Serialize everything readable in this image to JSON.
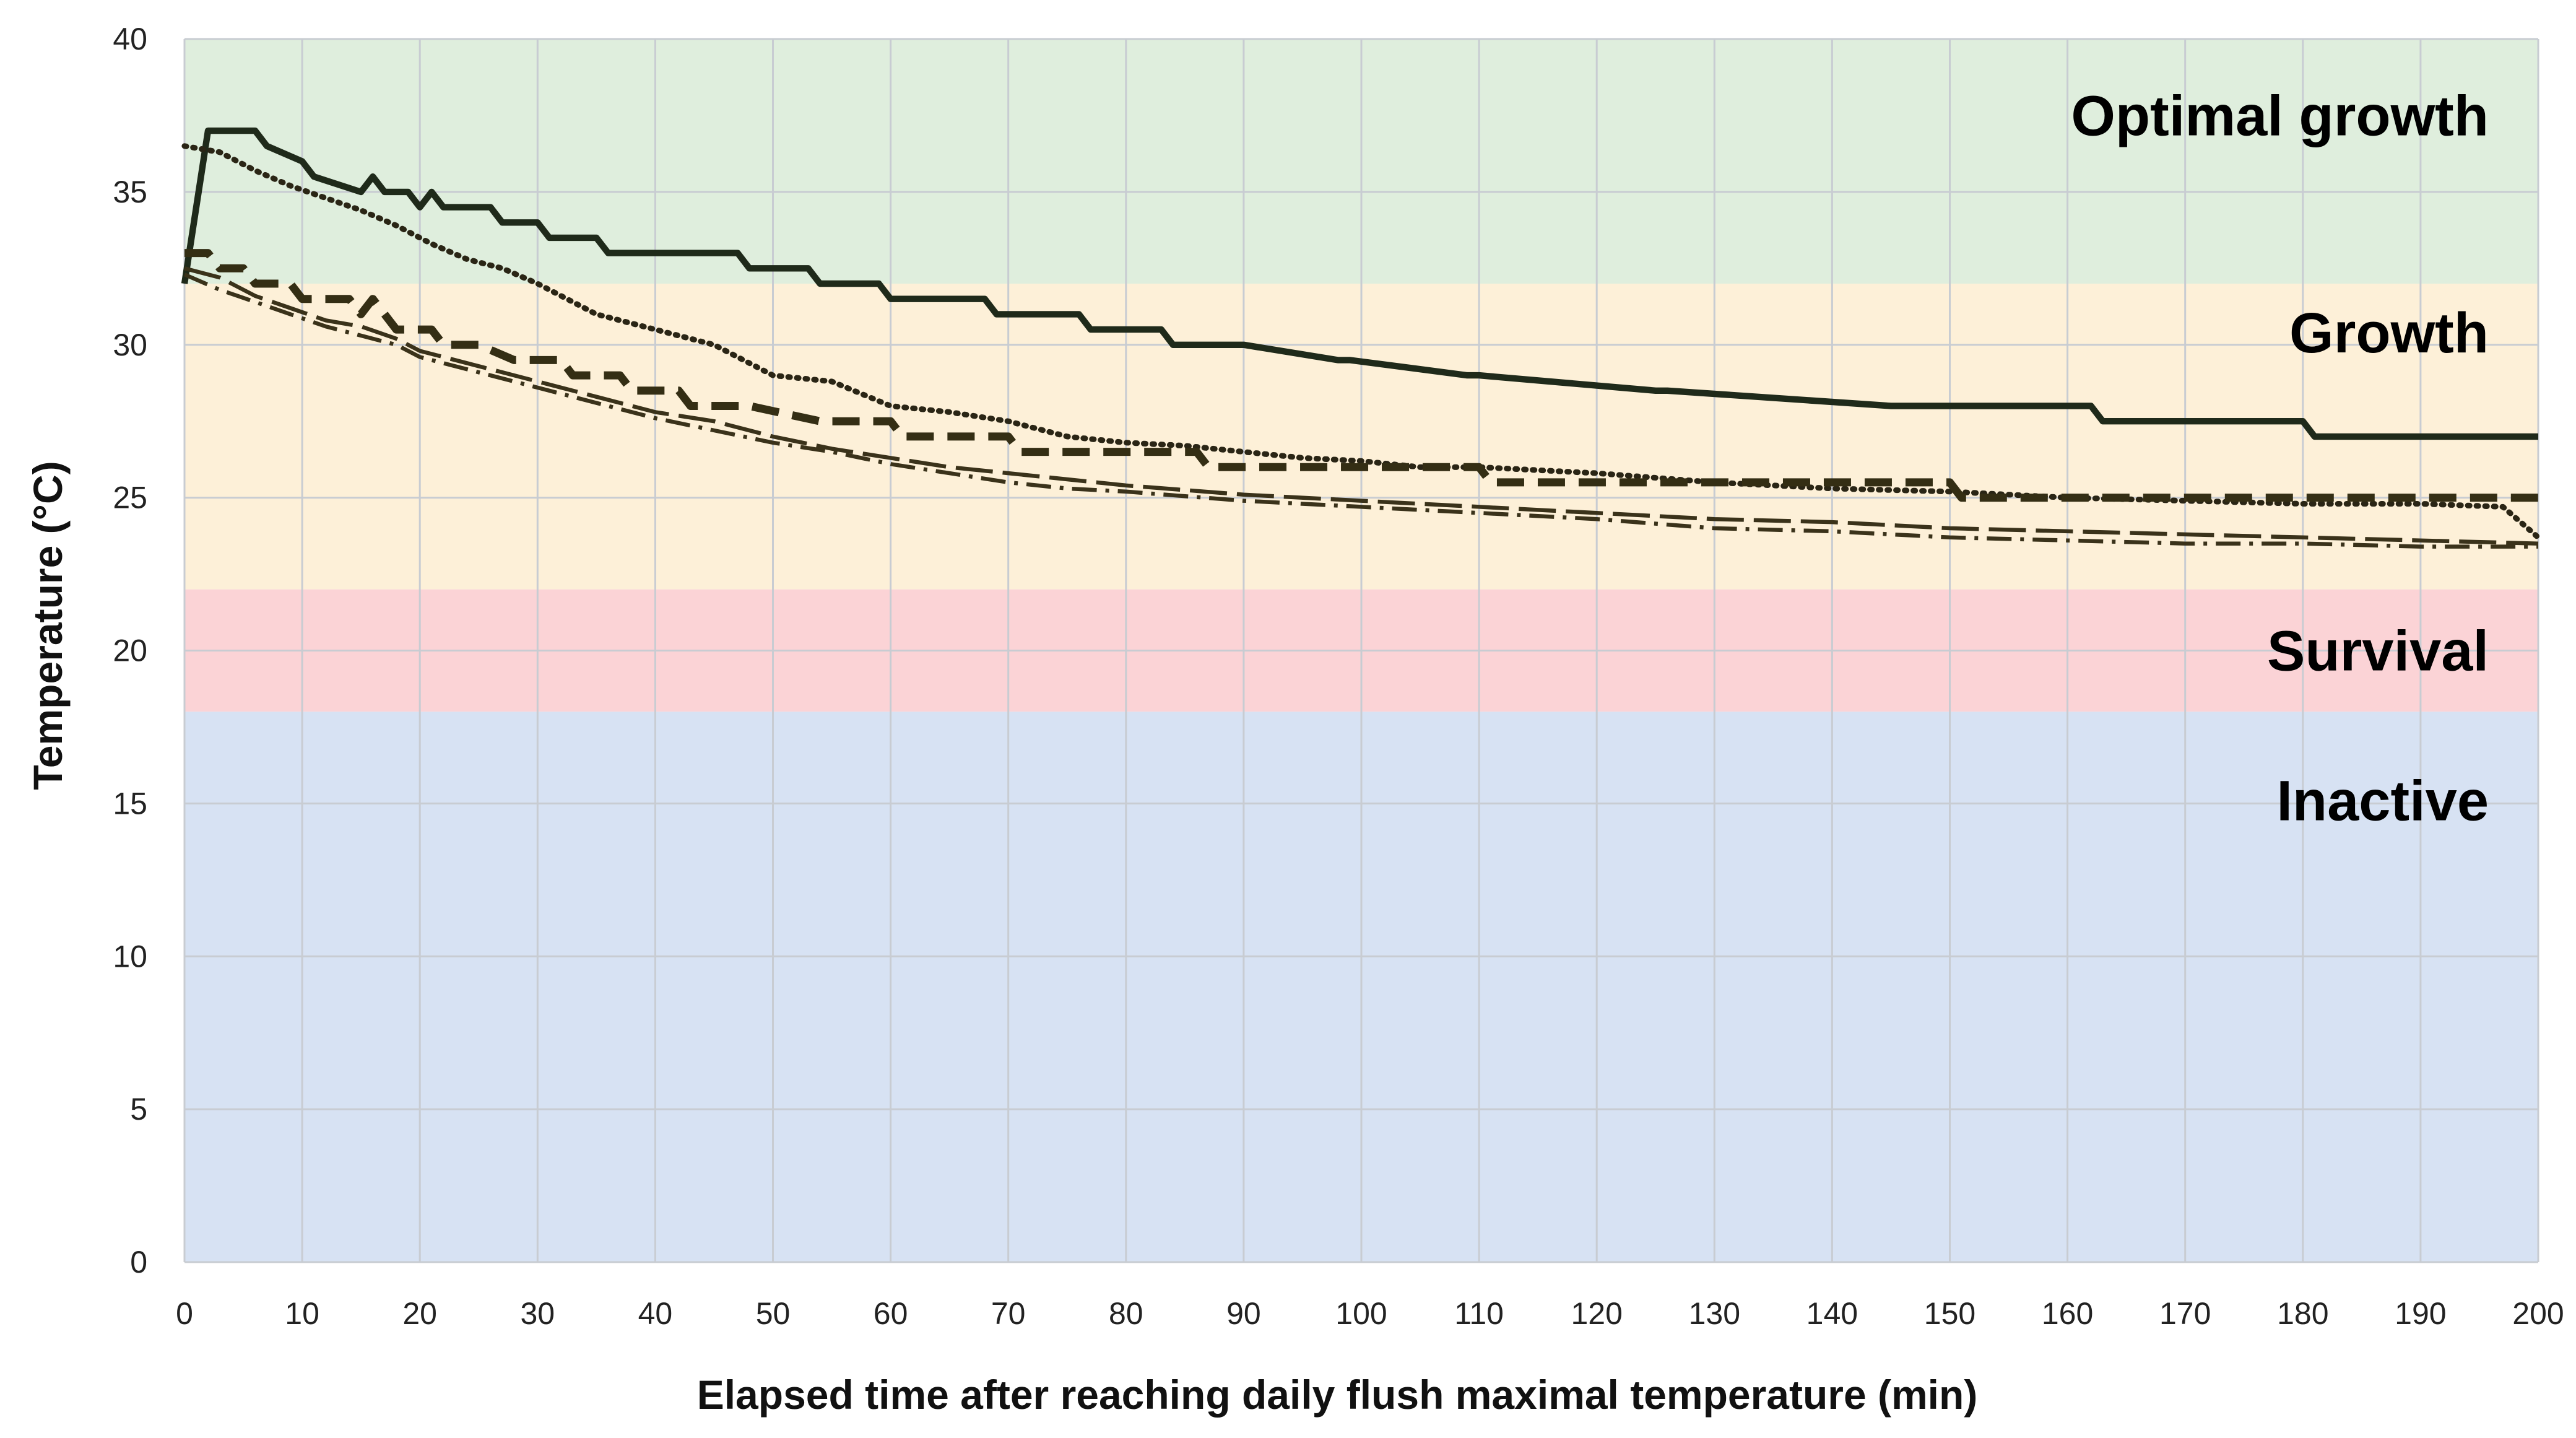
{
  "chart_data": {
    "type": "line",
    "title": "",
    "xlabel": "Elapsed time after reaching daily flush maximal temperature (min)",
    "ylabel": "Temperature (°C)",
    "xlim": [
      0,
      200
    ],
    "ylim": [
      0,
      40
    ],
    "xticks": [
      0,
      10,
      20,
      30,
      40,
      50,
      60,
      70,
      80,
      90,
      100,
      110,
      120,
      130,
      140,
      150,
      160,
      170,
      180,
      190,
      200
    ],
    "yticks": [
      0,
      5,
      10,
      15,
      20,
      25,
      30,
      35,
      40
    ],
    "grid": true,
    "legend": "none",
    "zones": [
      {
        "label": "Optimal growth",
        "y_from": 32,
        "y_to": 40,
        "color": "#dfeedd"
      },
      {
        "label": "Growth",
        "y_from": 22,
        "y_to": 32,
        "color": "#fdf0d8"
      },
      {
        "label": "Survival",
        "y_from": 18,
        "y_to": 22,
        "color": "#fbd3d6"
      },
      {
        "label": "Inactive",
        "y_from": 0,
        "y_to": 18,
        "color": "#d7e2f3"
      }
    ],
    "series": [
      {
        "name": "solid",
        "style": "solid",
        "color": "#1f2a1a",
        "width": 4,
        "x": [
          0,
          2,
          3,
          6,
          7,
          10,
          11,
          15,
          16,
          17,
          18,
          19,
          20,
          21,
          22,
          23,
          24,
          25,
          26,
          27,
          28,
          30,
          31,
          35,
          36,
          40,
          41,
          47,
          48,
          53,
          54,
          59,
          60,
          68,
          69,
          76,
          77,
          83,
          84,
          89,
          90,
          98,
          99,
          109,
          110,
          125,
          126,
          145,
          146,
          162,
          163,
          180,
          181,
          186,
          187,
          200
        ],
        "y": [
          32.0,
          37.0,
          37.0,
          37.0,
          36.5,
          36.0,
          35.5,
          35.0,
          35.5,
          35.0,
          35.0,
          35.0,
          34.5,
          35.0,
          34.5,
          34.5,
          34.5,
          34.5,
          34.5,
          34.0,
          34.0,
          34.0,
          33.5,
          33.5,
          33.0,
          33.0,
          33.0,
          33.0,
          32.5,
          32.5,
          32.0,
          32.0,
          31.5,
          31.5,
          31.0,
          31.0,
          30.5,
          30.5,
          30.0,
          30.0,
          30.0,
          29.5,
          29.5,
          29.0,
          29.0,
          28.5,
          28.5,
          28.0,
          28.0,
          28.0,
          27.5,
          27.5,
          27.0,
          27.0,
          27.0,
          27.0
        ]
      },
      {
        "name": "dotted",
        "style": "dotted",
        "color": "#2a2515",
        "width": 3.5,
        "x": [
          0,
          3,
          6,
          9,
          12,
          15,
          18,
          21,
          24,
          27,
          30,
          35,
          40,
          45,
          50,
          55,
          60,
          65,
          70,
          75,
          80,
          85,
          90,
          95,
          100,
          105,
          110,
          120,
          130,
          140,
          150,
          160,
          170,
          180,
          190,
          197,
          200
        ],
        "y": [
          36.5,
          36.3,
          35.7,
          35.2,
          34.8,
          34.4,
          33.9,
          33.3,
          32.8,
          32.5,
          32.0,
          31.0,
          30.5,
          30.0,
          29.0,
          28.8,
          28.0,
          27.8,
          27.5,
          27.0,
          26.8,
          26.7,
          26.5,
          26.3,
          26.2,
          26.0,
          26.0,
          25.8,
          25.5,
          25.3,
          25.2,
          25.0,
          24.9,
          24.8,
          24.8,
          24.7,
          23.7
        ]
      },
      {
        "name": "heavy-dash",
        "style": "dashed",
        "color": "#342e14",
        "width": 5,
        "x": [
          0,
          2,
          3,
          5,
          6,
          9,
          10,
          14,
          15,
          16,
          17,
          18,
          19,
          20,
          21,
          22,
          24,
          25,
          28,
          29,
          32,
          33,
          37,
          38,
          42,
          43,
          47,
          48,
          54,
          55,
          60,
          61,
          66,
          67,
          70,
          71,
          78,
          79,
          86,
          87,
          90,
          91,
          100,
          101,
          110,
          111,
          119,
          120,
          128,
          129,
          150,
          151,
          200
        ],
        "y": [
          33,
          33,
          32.5,
          32.5,
          32,
          32,
          31.5,
          31.5,
          31,
          31.5,
          31,
          30.5,
          30.5,
          30.5,
          30.5,
          30,
          30,
          30,
          29.5,
          29.5,
          29.5,
          29,
          29,
          28.5,
          28.5,
          28,
          28,
          28,
          27.5,
          27.5,
          27.5,
          27,
          27,
          27,
          27,
          26.5,
          26.5,
          26.5,
          26.5,
          26,
          26,
          26,
          26,
          26,
          26,
          25.5,
          25.5,
          25.5,
          25.5,
          25.5,
          25.5,
          25,
          25
        ]
      },
      {
        "name": "long-dash",
        "style": "long-dash",
        "color": "#3a321a",
        "width": 2.5,
        "x": [
          0,
          3,
          6,
          9,
          12,
          15,
          18,
          20,
          25,
          30,
          35,
          40,
          45,
          50,
          55,
          60,
          65,
          70,
          75,
          80,
          90,
          100,
          110,
          120,
          130,
          140,
          150,
          160,
          170,
          180,
          190,
          200
        ],
        "y": [
          32.5,
          32.2,
          31.6,
          31.2,
          30.8,
          30.6,
          30.2,
          29.8,
          29.3,
          28.8,
          28.3,
          27.8,
          27.5,
          27.0,
          26.6,
          26.3,
          26.0,
          25.8,
          25.6,
          25.4,
          25.1,
          24.9,
          24.7,
          24.5,
          24.3,
          24.2,
          24.0,
          23.9,
          23.8,
          23.7,
          23.6,
          23.5
        ]
      },
      {
        "name": "dash-dot",
        "style": "dash-dot",
        "color": "#3a321a",
        "width": 2.5,
        "x": [
          0,
          3,
          6,
          9,
          12,
          15,
          18,
          20,
          25,
          30,
          35,
          40,
          45,
          50,
          55,
          60,
          65,
          70,
          75,
          80,
          90,
          100,
          110,
          120,
          130,
          140,
          150,
          160,
          170,
          180,
          190,
          200
        ],
        "y": [
          32.3,
          31.8,
          31.4,
          31.0,
          30.6,
          30.3,
          30.0,
          29.6,
          29.1,
          28.6,
          28.1,
          27.6,
          27.2,
          26.8,
          26.5,
          26.1,
          25.8,
          25.5,
          25.3,
          25.2,
          24.9,
          24.7,
          24.5,
          24.3,
          24.0,
          23.9,
          23.7,
          23.6,
          23.5,
          23.5,
          23.4,
          23.4
        ]
      }
    ]
  }
}
